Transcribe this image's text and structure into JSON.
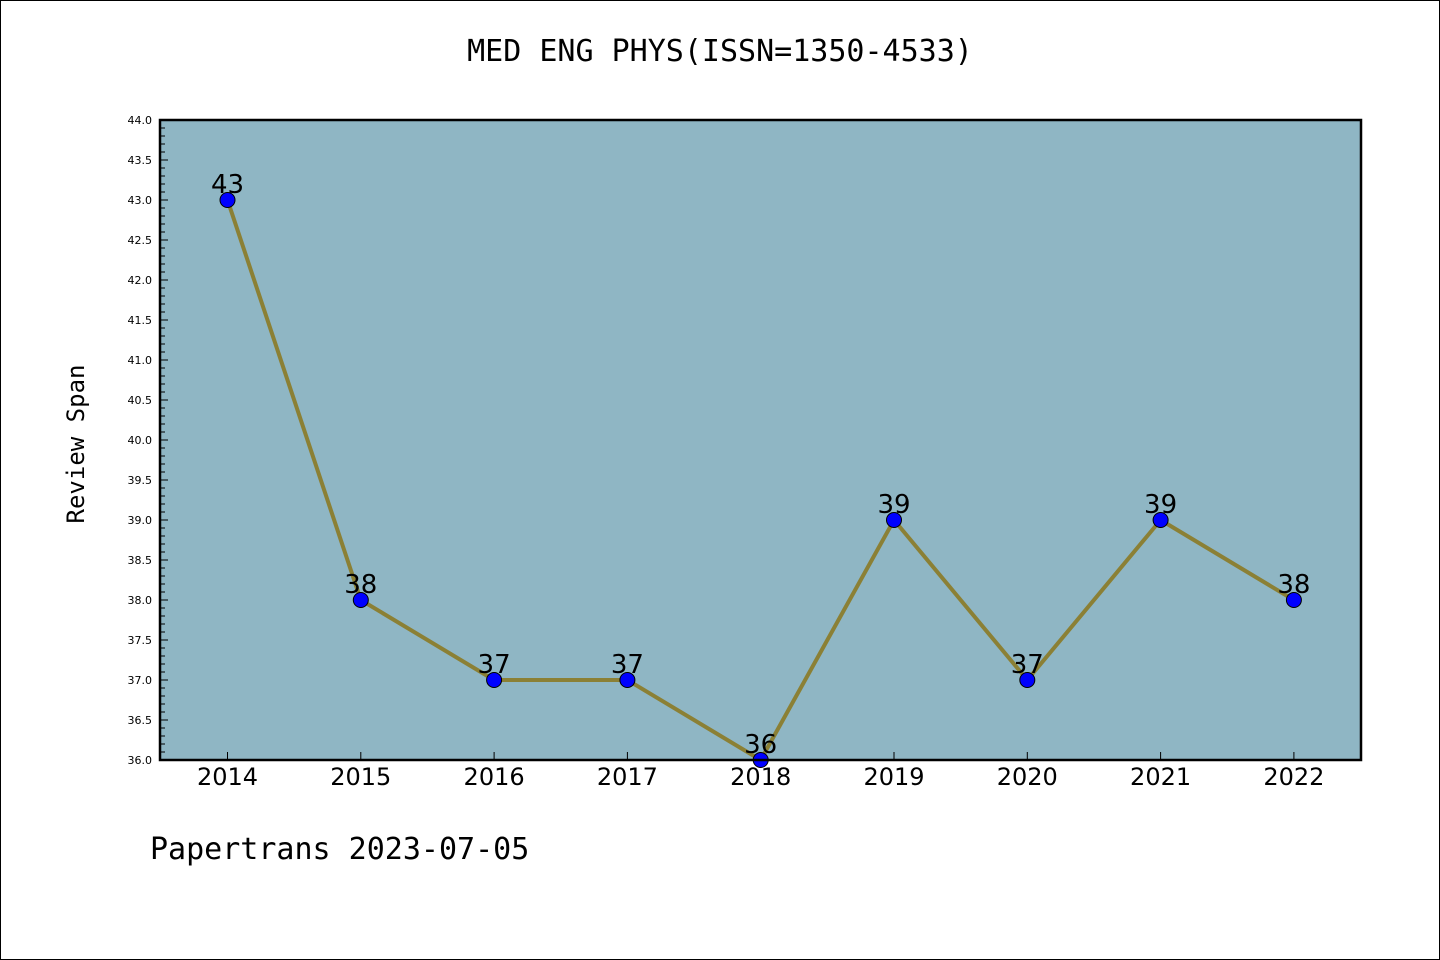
{
  "title": "MED ENG PHYS(ISSN=1350-4533)",
  "footer": "Papertrans 2023-07-05",
  "colors": {
    "plot_background": "#8fb6c4",
    "line": "#8b8035",
    "marker": "#0000ff"
  },
  "chart_data": {
    "type": "line",
    "title": "MED ENG PHYS(ISSN=1350-4533)",
    "xlabel": "",
    "ylabel": "Review Span",
    "x": [
      "2014",
      "2015",
      "2016",
      "2017",
      "2018",
      "2019",
      "2020",
      "2021",
      "2022"
    ],
    "values": [
      43,
      38,
      37,
      37,
      36,
      39,
      37,
      39,
      38
    ],
    "data_labels": [
      "43",
      "38",
      "37",
      "37",
      "36",
      "39",
      "37",
      "39",
      "38"
    ],
    "ylim": [
      36.0,
      44.0
    ],
    "yticks": [
      "36.0",
      "36.5",
      "37.0",
      "37.5",
      "38.0",
      "38.5",
      "39.0",
      "39.5",
      "40.0",
      "40.5",
      "41.0",
      "41.5",
      "42.0",
      "42.5",
      "43.0",
      "43.5",
      "44.0"
    ],
    "grid": false,
    "legend": "none"
  }
}
